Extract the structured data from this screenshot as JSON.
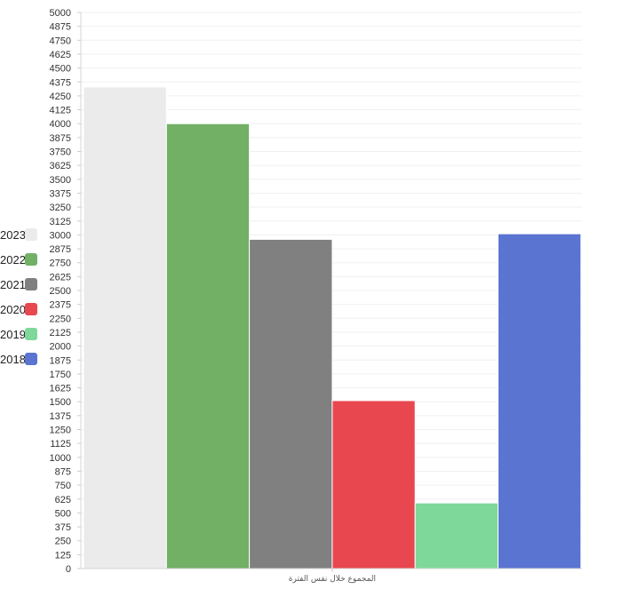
{
  "chart_data": {
    "type": "bar",
    "categories": [
      "المجموع خلال نفس الفترة"
    ],
    "series": [
      {
        "name": "2023",
        "values": [
          4330
        ],
        "color": "#ebebeb"
      },
      {
        "name": "2022",
        "values": [
          4000
        ],
        "color": "#72b066"
      },
      {
        "name": "2021",
        "values": [
          2960
        ],
        "color": "#808080"
      },
      {
        "name": "2020",
        "values": [
          1510
        ],
        "color": "#e8474f"
      },
      {
        "name": "2019",
        "values": [
          590
        ],
        "color": "#7ed89a"
      },
      {
        "name": "2018",
        "values": [
          3010
        ],
        "color": "#5a74d1"
      }
    ],
    "ylim": [
      0,
      5000
    ],
    "ytick_step": 125,
    "grid": true,
    "legend_position": "left"
  }
}
